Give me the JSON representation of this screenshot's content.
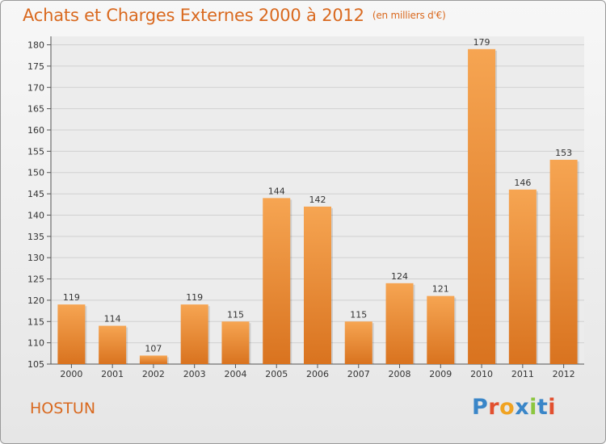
{
  "title": "Achats et Charges Externes 2000 à 2012",
  "unit": "(en milliers d'€)",
  "commune": "HOSTUN",
  "logo": {
    "text": "Proxiti",
    "letter_colors": [
      "#3a86c8",
      "#e2502f",
      "#f0a322",
      "#3a86c8",
      "#8cc63f",
      "#3a86c8",
      "#e2502f"
    ]
  },
  "colors": {
    "bar_top": "#f6a552",
    "bar_bottom": "#d9731f",
    "title": "#d9691f",
    "grid": "#d0d0d0"
  },
  "chart_data": {
    "type": "bar",
    "categories": [
      "2000",
      "2001",
      "2002",
      "2003",
      "2004",
      "2005",
      "2006",
      "2007",
      "2008",
      "2009",
      "2010",
      "2011",
      "2012"
    ],
    "values": [
      119,
      114,
      107,
      119,
      115,
      144,
      142,
      115,
      124,
      121,
      179,
      146,
      153
    ],
    "data_labels": [
      "119",
      "114",
      "107",
      "119",
      "115",
      "144",
      "142",
      "115",
      "124",
      "121",
      "179",
      "146",
      "153"
    ],
    "yticks": [
      105,
      110,
      115,
      120,
      125,
      130,
      135,
      140,
      145,
      150,
      155,
      160,
      165,
      170,
      175,
      180
    ],
    "ylim": [
      105,
      182
    ],
    "grid": true
  }
}
